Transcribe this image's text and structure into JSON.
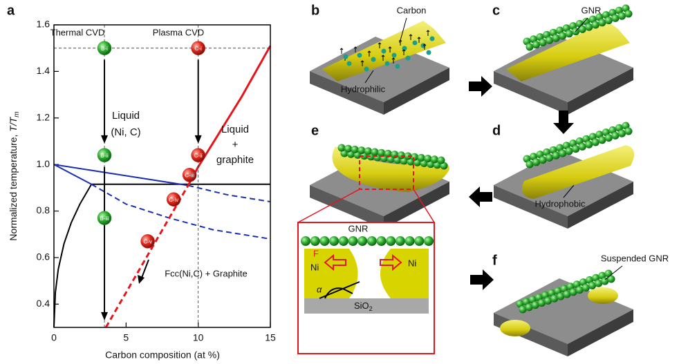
{
  "chart_data": {
    "type": "line",
    "panel_label": "a",
    "xlabel": "Carbon composition (at %)",
    "ylabel": {
      "text": "Normalized temperature, ",
      "var": "T/T",
      "sub": "m"
    },
    "xlim": [
      0,
      15
    ],
    "ylim": [
      0.3,
      1.6
    ],
    "xticks": [
      0,
      5,
      10,
      15
    ],
    "yticks": [
      0.4,
      0.6,
      0.8,
      {
        "value": 1,
        "label": "1.0"
      },
      1.2,
      1.4,
      1.6
    ],
    "series": [
      {
        "color": "#000000",
        "width": 2,
        "dash": false,
        "x": [
          0,
          0.1,
          0.3,
          0.7,
          1.2,
          1.8,
          2.6
        ],
        "values": [
          0.3,
          0.45,
          0.55,
          0.66,
          0.75,
          0.83,
          0.915
        ]
      },
      {
        "color": "#000000",
        "width": 2,
        "dash": false,
        "x": [
          2.6,
          15
        ],
        "values": [
          0.915,
          0.915
        ]
      },
      {
        "color": "#1a2fb0",
        "width": 2,
        "dash": false,
        "x": [
          0,
          2.6
        ],
        "values": [
          1.0,
          0.915
        ]
      },
      {
        "color": "#1a2fb0",
        "width": 2,
        "dash": false,
        "x": [
          0,
          9.3
        ],
        "values": [
          1.0,
          0.91
        ]
      },
      {
        "color": "#1a2fb0",
        "width": 2,
        "dash": true,
        "x": [
          2.6,
          5,
          8,
          11,
          15
        ],
        "values": [
          0.915,
          0.83,
          0.77,
          0.72,
          0.68
        ]
      },
      {
        "color": "#1a2fb0",
        "width": 2,
        "dash": true,
        "x": [
          9.3,
          12,
          15
        ],
        "values": [
          0.91,
          0.87,
          0.84
        ]
      },
      {
        "color": "#e8141b",
        "width": 3,
        "dash": false,
        "x": [
          9.3,
          10,
          11,
          12,
          13,
          14,
          15
        ],
        "values": [
          0.91,
          0.99,
          1.09,
          1.19,
          1.29,
          1.4,
          1.51
        ]
      },
      {
        "color": "#e8141b",
        "width": 3,
        "dash": true,
        "x": [
          3.6,
          9.3
        ],
        "values": [
          0.3,
          0.91
        ]
      },
      {
        "color": "#333333",
        "width": 0.8,
        "dash": true,
        "x": [
          3.5,
          3.5
        ],
        "values": [
          0.3,
          1.6
        ]
      },
      {
        "color": "#333333",
        "width": 0.8,
        "dash": true,
        "x": [
          10,
          10
        ],
        "values": [
          0.3,
          1.6
        ]
      },
      {
        "color": "#333333",
        "width": 0.8,
        "dash": true,
        "x": [
          0,
          15
        ],
        "values": [
          1.5,
          1.5
        ]
      }
    ],
    "points": [
      {
        "color": "#2a9d2a",
        "labels": [
          "B-i",
          "B-ii",
          "B-iii"
        ],
        "x": [
          3.5,
          3.5,
          3.5
        ],
        "values": [
          1.5,
          1.04,
          0.77
        ]
      },
      {
        "color": "#d81e1e",
        "labels": [
          "C-i",
          "C-ii",
          "C-iii",
          "C-iv",
          "C-v"
        ],
        "x": [
          10,
          10,
          9.4,
          8.3,
          6.5
        ],
        "values": [
          1.5,
          1.04,
          0.955,
          0.85,
          0.67
        ]
      }
    ],
    "annotations": [
      "Thermal CVD",
      "Plasma CVD",
      "Liquid",
      "(Ni, C)",
      "Liquid",
      "+",
      "graphite",
      "Fcc(Ni,C) + Graphite"
    ]
  },
  "panels": [
    {
      "letter": "b",
      "labels": [
        "Carbon",
        "Hydrophilic"
      ]
    },
    {
      "letter": "c",
      "labels": [
        "GNR"
      ]
    },
    {
      "letter": "d",
      "labels": [
        "Hydrophobic"
      ]
    },
    {
      "letter": "e",
      "labels": [
        "GNR",
        "F",
        "Ni",
        "Ni",
        "α",
        "SiO",
        "2"
      ]
    },
    {
      "letter": "f",
      "labels": [
        "Suspended GNR"
      ]
    }
  ]
}
